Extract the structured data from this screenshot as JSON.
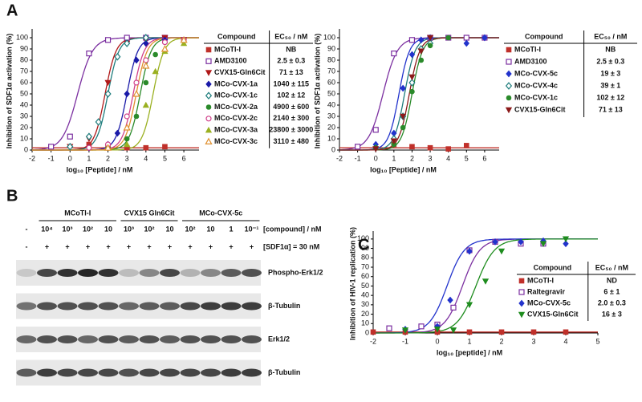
{
  "chart_data": [
    {
      "type": "scatter",
      "panel": "A",
      "ylabel": "Inhibition of SDF1α activation (%)",
      "xlabel": "log₁₀ [Peptide] / nM",
      "xlim": [
        -2,
        6.8
      ],
      "xticks": [
        -2,
        -1,
        0,
        1,
        2,
        3,
        4,
        5,
        6
      ],
      "ylim": [
        0,
        105
      ],
      "yticks": [
        0,
        10,
        20,
        30,
        40,
        50,
        60,
        70,
        80,
        90,
        100
      ],
      "table_header": [
        "Compound",
        "EC₅₀ / nM"
      ],
      "series": [
        {
          "name": "MCoTI-I",
          "ec50": "NB",
          "color": "#c0302a",
          "marker": "square",
          "x": [
            1,
            2,
            3,
            4,
            5
          ],
          "values": [
            5,
            3,
            2,
            2,
            3
          ],
          "fit_flat": 2
        },
        {
          "name": "AMD3100",
          "ec50": "2.5 ± 0.3",
          "color": "#7b2fa0",
          "marker": "square-open",
          "x": [
            -1,
            0,
            1,
            2,
            3,
            4,
            5
          ],
          "values": [
            3,
            12,
            86,
            98,
            100,
            100,
            100
          ],
          "fit_mid": 0.4,
          "fit_slope": 1.1
        },
        {
          "name": "CVX15-Gln6Cit",
          "ec50": "71 ± 13",
          "color": "#b01818",
          "marker": "tri-down",
          "x": [
            0,
            1,
            2,
            3,
            4,
            5,
            6
          ],
          "values": [
            3,
            10,
            60,
            95,
            98,
            100,
            98
          ],
          "fit_mid": 1.85,
          "fit_slope": 1.5
        },
        {
          "name": "MCo-CVX-1a",
          "ec50": "1040 ± 115",
          "color": "#1a1aa8",
          "marker": "diamond",
          "x": [
            1,
            2,
            2.5,
            3,
            3.5,
            4,
            5,
            6
          ],
          "values": [
            2,
            5,
            15,
            50,
            80,
            95,
            98,
            98
          ],
          "fit_mid": 3.0,
          "fit_slope": 1.5
        },
        {
          "name": "MCo-CVX-1c",
          "ec50": "102 ± 12",
          "color": "#1e7d7d",
          "marker": "diamond-open",
          "x": [
            0,
            1,
            1.5,
            2,
            2.5,
            3,
            4
          ],
          "values": [
            3,
            12,
            25,
            50,
            83,
            95,
            100
          ],
          "fit_mid": 2.0,
          "fit_slope": 1.5
        },
        {
          "name": "MCo-CVX-2a",
          "ec50": "4900 ± 600",
          "color": "#2a8a2a",
          "marker": "circle",
          "x": [
            2,
            3,
            3.5,
            4,
            4.5,
            5,
            6
          ],
          "values": [
            2,
            10,
            30,
            60,
            85,
            96,
            98
          ],
          "fit_mid": 3.7,
          "fit_slope": 1.5
        },
        {
          "name": "MCo-CVX-2c",
          "ec50": "2140 ± 300",
          "color": "#d0408a",
          "marker": "circle-open",
          "x": [
            1,
            2,
            3,
            3.5,
            4,
            5,
            6
          ],
          "values": [
            2,
            5,
            30,
            60,
            80,
            96,
            98
          ],
          "fit_mid": 3.33,
          "fit_slope": 1.5
        },
        {
          "name": "MCo-CVX-3a",
          "ec50": "23800 ± 3000",
          "color": "#9ab020",
          "marker": "tri-up",
          "x": [
            2,
            3,
            4,
            4.5,
            5,
            6
          ],
          "values": [
            2,
            5,
            40,
            70,
            88,
            95
          ],
          "fit_mid": 4.38,
          "fit_slope": 1.5
        },
        {
          "name": "MCo-CVX-3c",
          "ec50": "3110 ± 480",
          "color": "#e09030",
          "marker": "tri-up-open",
          "x": [
            2,
            3,
            3.5,
            4,
            5,
            6
          ],
          "values": [
            2,
            20,
            50,
            75,
            90,
            98
          ],
          "fit_mid": 3.49,
          "fit_slope": 1.5
        }
      ]
    },
    {
      "type": "scatter",
      "ylabel": "Inhibition of SDF1α activation (%)",
      "xlabel": "log₁₀ [Peptide] / nM",
      "xlim": [
        -2,
        6.8
      ],
      "xticks": [
        -2,
        -1,
        0,
        1,
        2,
        3,
        4,
        5,
        6
      ],
      "ylim": [
        0,
        105
      ],
      "yticks": [
        0,
        10,
        20,
        30,
        40,
        50,
        60,
        70,
        80,
        90,
        100
      ],
      "table_header": [
        "Compound",
        "EC₅₀ / nM"
      ],
      "series": [
        {
          "name": "MCoTI-I",
          "ec50": "NB",
          "color": "#c0302a",
          "marker": "square",
          "x": [
            1,
            2,
            3,
            4,
            5
          ],
          "values": [
            5,
            3,
            2,
            1,
            4
          ],
          "fit_flat": 2
        },
        {
          "name": "AMD3100",
          "ec50": "2.5 ± 0.3",
          "color": "#7b2fa0",
          "marker": "square-open",
          "x": [
            -1,
            0,
            1,
            2,
            3,
            4,
            5,
            6
          ],
          "values": [
            3,
            18,
            86,
            98,
            100,
            100,
            100,
            100
          ],
          "fit_mid": 0.4,
          "fit_slope": 1.1
        },
        {
          "name": "MCo-CVX-5c",
          "ec50": "19 ± 3",
          "color": "#2233cc",
          "marker": "diamond",
          "x": [
            0,
            1,
            1.5,
            2,
            2.5,
            3,
            5,
            6
          ],
          "values": [
            5,
            15,
            55,
            85,
            98,
            100,
            95,
            100
          ],
          "fit_mid": 1.28,
          "fit_slope": 1.5
        },
        {
          "name": "MCo-CVX-4c",
          "ec50": "39 ± 1",
          "color": "#1e7d7d",
          "marker": "diamond-open",
          "x": [
            0,
            1,
            1.5,
            2,
            2.5,
            3
          ],
          "values": [
            2,
            10,
            30,
            60,
            90,
            95
          ],
          "fit_mid": 1.59,
          "fit_slope": 1.5
        },
        {
          "name": "MCo-CVX-1c",
          "ec50": "102 ± 12",
          "color": "#2a8a2a",
          "marker": "circle",
          "x": [
            0,
            1,
            1.5,
            2,
            2.5,
            3,
            4
          ],
          "values": [
            2,
            5,
            20,
            52,
            80,
            93,
            100
          ],
          "fit_mid": 2.0,
          "fit_slope": 1.5
        },
        {
          "name": "CVX15-Gln6Cit",
          "ec50": "71 ± 13",
          "color": "#8b1a1a",
          "marker": "tri-down",
          "x": [
            0,
            1,
            1.5,
            2,
            2.5,
            3
          ],
          "values": [
            1,
            8,
            30,
            65,
            88,
            100
          ],
          "fit_mid": 1.85,
          "fit_slope": 1.5
        }
      ]
    },
    {
      "type": "scatter",
      "panel": "C",
      "ylabel": "Inhibition of HIV-1 replication (%)",
      "xlabel": "log₁₀ [peptide] / nM",
      "xlim": [
        -2,
        5
      ],
      "xticks": [
        -2,
        -1,
        0,
        1,
        2,
        3,
        4,
        5
      ],
      "ylim": [
        0,
        105
      ],
      "yticks": [
        0,
        10,
        20,
        30,
        40,
        50,
        60,
        70,
        80,
        90,
        100
      ],
      "table_header": [
        "Compound",
        "EC₅₀ / nM"
      ],
      "series": [
        {
          "name": "MCoTI-I",
          "ec50": "ND",
          "color": "#c0302a",
          "marker": "square",
          "x": [
            -2,
            -1,
            0,
            1,
            2,
            3,
            4
          ],
          "values": [
            1,
            1,
            1,
            1,
            1,
            1,
            1
          ],
          "fit_flat": 1
        },
        {
          "name": "Raltegravir",
          "ec50": "6 ± 1",
          "color": "#7b2fa0",
          "marker": "square-open",
          "x": [
            -1.5,
            -0.5,
            0,
            0.5,
            1,
            1.8,
            2.6,
            3.3
          ],
          "values": [
            5,
            7,
            9,
            27,
            88,
            97,
            95,
            95
          ],
          "fit_mid": 0.78,
          "fit_slope": 1.6
        },
        {
          "name": "MCo-CVX-5c",
          "ec50": "2.0 ± 0.3",
          "color": "#2233cc",
          "marker": "diamond",
          "x": [
            -1,
            0,
            0.4,
            1,
            1.8,
            2.6,
            3.3,
            4
          ],
          "values": [
            4,
            7,
            35,
            87,
            97,
            97,
            98,
            95
          ],
          "fit_mid": 0.3,
          "fit_slope": 1.6
        },
        {
          "name": "CVX15-Gln6Cit",
          "ec50": "16 ± 3",
          "color": "#1e8c1e",
          "marker": "tri-down",
          "x": [
            -1,
            0,
            0.5,
            1,
            1.5,
            2,
            3.3,
            4
          ],
          "values": [
            3,
            4,
            3,
            30,
            55,
            87,
            95,
            100
          ],
          "fit_mid": 1.2,
          "fit_slope": 1.5
        }
      ]
    }
  ],
  "blot": {
    "panel": "B",
    "groups": [
      "MCoTI-I",
      "CVX15 Gln6Cit",
      "MCo-CVX-5c"
    ],
    "compound_row": [
      "-",
      "10⁴",
      "10³",
      "10²",
      "10",
      "10³",
      "10²",
      "10",
      "10²",
      "10",
      "1",
      "10⁻¹"
    ],
    "compound_label": "[compound] / nM",
    "sdf_row": [
      "-",
      "+",
      "+",
      "+",
      "+",
      "+",
      "+",
      "+",
      "+",
      "+",
      "+",
      "+"
    ],
    "sdf_label": "[SDF1α] = 30 nM",
    "rows": [
      "Phospho-Erk1/2",
      "β-Tubulin",
      "Erk1/2",
      "β-Tubulin"
    ]
  }
}
